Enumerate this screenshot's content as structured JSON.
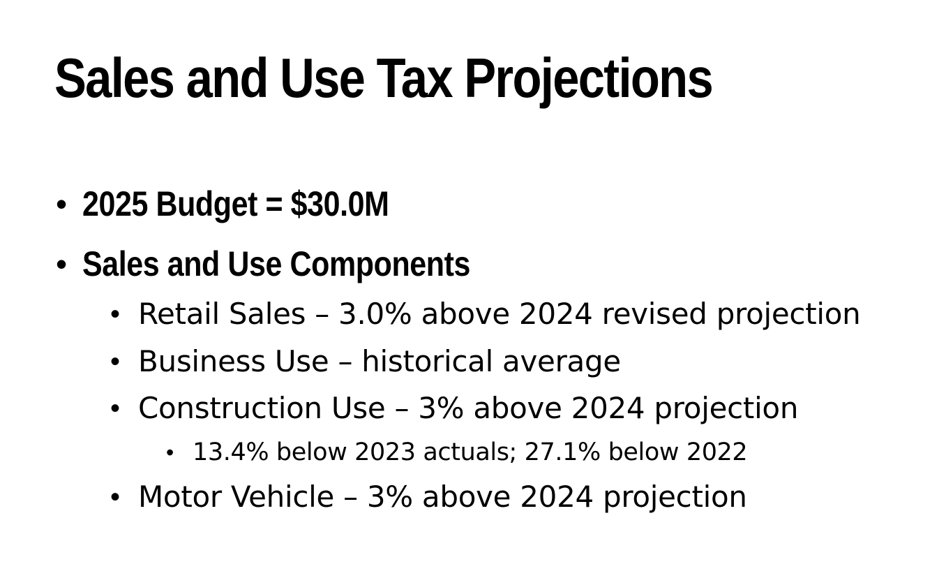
{
  "slide": {
    "title": "Sales and Use Tax Projections",
    "bullets": [
      {
        "text": "2025 Budget = $30.0M"
      },
      {
        "text": "Sales and Use Components"
      }
    ],
    "components": [
      {
        "text": "Retail Sales – 3.0% above 2024 revised projection"
      },
      {
        "text": "Business Use – historical average"
      },
      {
        "text": "Construction Use – 3% above 2024 projection"
      },
      {
        "text": "Motor Vehicle – 3% above 2024 projection"
      }
    ],
    "construction_note": {
      "text": "13.4% below 2023 actuals; 27.1% below 2022"
    },
    "bullet_glyph": "•"
  }
}
